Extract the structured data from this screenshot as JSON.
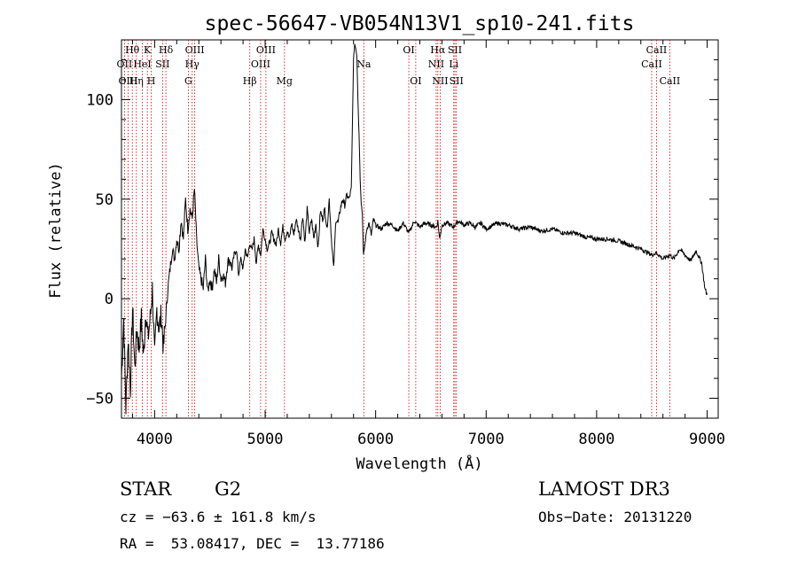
{
  "chart_data": {
    "type": "line",
    "title": "spec-56647-VB054N13V1_sp10-241.fits",
    "xlabel": "Wavelength (Å)",
    "ylabel": "Flux (relative)",
    "xlim": [
      3700,
      9100
    ],
    "ylim": [
      -60,
      130
    ],
    "x_ticks": [
      4000,
      5000,
      6000,
      7000,
      8000,
      9000
    ],
    "y_ticks": [
      -50,
      0,
      50,
      100
    ],
    "x_tick_labels": [
      "4000",
      "5000",
      "6000",
      "7000",
      "8000",
      "9000"
    ],
    "y_tick_labels": [
      "−50",
      "0",
      "50",
      "100"
    ],
    "series": [
      {
        "name": "spectrum",
        "x": [
          3700,
          3720,
          3740,
          3760,
          3780,
          3800,
          3820,
          3840,
          3860,
          3880,
          3900,
          3920,
          3940,
          3960,
          3980,
          4000,
          4020,
          4040,
          4060,
          4080,
          4100,
          4120,
          4140,
          4160,
          4180,
          4200,
          4220,
          4240,
          4260,
          4280,
          4300,
          4320,
          4340,
          4360,
          4380,
          4400,
          4420,
          4440,
          4460,
          4480,
          4500,
          4520,
          4540,
          4560,
          4580,
          4600,
          4620,
          4640,
          4660,
          4680,
          4700,
          4720,
          4740,
          4760,
          4780,
          4800,
          4820,
          4840,
          4860,
          4880,
          4900,
          4920,
          4940,
          4960,
          4980,
          5000,
          5020,
          5040,
          5060,
          5080,
          5100,
          5120,
          5140,
          5160,
          5180,
          5200,
          5220,
          5240,
          5260,
          5280,
          5300,
          5320,
          5340,
          5360,
          5380,
          5400,
          5420,
          5440,
          5460,
          5480,
          5500,
          5520,
          5540,
          5560,
          5580,
          5600,
          5620,
          5640,
          5660,
          5680,
          5700,
          5720,
          5740,
          5760,
          5780,
          5800,
          5810,
          5820,
          5830,
          5840,
          5850,
          5860,
          5870,
          5880,
          5890,
          5900,
          5920,
          5940,
          5960,
          5980,
          6000,
          6050,
          6100,
          6150,
          6200,
          6250,
          6300,
          6350,
          6400,
          6450,
          6500,
          6550,
          6563,
          6580,
          6600,
          6650,
          6700,
          6750,
          6800,
          6850,
          6900,
          6950,
          7000,
          7100,
          7200,
          7300,
          7400,
          7500,
          7600,
          7700,
          7800,
          7900,
          8000,
          8100,
          8200,
          8300,
          8400,
          8500,
          8542,
          8600,
          8662,
          8700,
          8750,
          8800,
          8850,
          8900,
          8950,
          8980,
          9000
        ],
        "values": [
          -40,
          -10,
          -55,
          -20,
          -45,
          -5,
          -35,
          -15,
          -25,
          -10,
          -30,
          -5,
          -20,
          -10,
          5,
          -30,
          -5,
          -15,
          -8,
          -25,
          -10,
          5,
          15,
          25,
          20,
          30,
          25,
          40,
          30,
          50,
          35,
          45,
          40,
          55,
          30,
          15,
          10,
          5,
          20,
          3,
          10,
          5,
          15,
          8,
          20,
          10,
          12,
          8,
          18,
          20,
          15,
          22,
          25,
          12,
          20,
          15,
          25,
          20,
          28,
          24,
          30,
          18,
          27,
          22,
          35,
          30,
          25,
          28,
          33,
          30,
          27,
          35,
          28,
          36,
          30,
          34,
          30,
          38,
          32,
          40,
          35,
          30,
          42,
          28,
          45,
          33,
          40,
          30,
          38,
          25,
          44,
          40,
          45,
          35,
          50,
          30,
          15,
          40,
          38,
          45,
          50,
          47,
          52,
          50,
          55,
          120,
          128,
          126,
          122,
          100,
          82,
          60,
          48,
          42,
          22,
          26,
          35,
          38,
          32,
          40,
          37,
          35,
          38,
          37,
          34,
          38,
          33,
          39,
          36,
          38,
          37,
          36,
          39,
          30,
          37,
          38,
          36,
          39,
          37,
          38,
          36,
          38,
          35,
          38,
          37,
          35,
          36,
          34,
          35,
          33,
          33,
          31,
          30,
          30,
          29,
          27,
          25,
          22,
          23,
          20,
          22,
          20,
          25,
          22,
          19,
          24,
          18,
          5,
          2
        ]
      }
    ],
    "lines": [
      {
        "label": "Hθ",
        "x": 3798,
        "row": 0
      },
      {
        "label": "OII",
        "x": 3727,
        "row": 1
      },
      {
        "label": "OIII",
        "x": 3760,
        "row": 2
      },
      {
        "label": "K",
        "x": 3934,
        "row": 0
      },
      {
        "label": "HeI",
        "x": 3889,
        "row": 1
      },
      {
        "label": "Hη",
        "x": 3835,
        "row": 2
      },
      {
        "label": "SII",
        "x": 4072,
        "row": 1
      },
      {
        "label": "H",
        "x": 3969,
        "row": 2
      },
      {
        "label": "Hδ",
        "x": 4102,
        "row": 0
      },
      {
        "label": "OIII",
        "x": 4363,
        "row": 0
      },
      {
        "label": "Hγ",
        "x": 4340,
        "row": 1
      },
      {
        "label": "G",
        "x": 4305,
        "row": 2
      },
      {
        "label": "Hβ",
        "x": 4861,
        "row": 2
      },
      {
        "label": "OIII",
        "x": 5007,
        "row": 0
      },
      {
        "label": "OIII",
        "x": 4959,
        "row": 1
      },
      {
        "label": "Mg",
        "x": 5175,
        "row": 2
      },
      {
        "label": "Na",
        "x": 5893,
        "row": 1
      },
      {
        "label": "OI",
        "x": 6300,
        "row": 0
      },
      {
        "label": "OI",
        "x": 6363,
        "row": 2
      },
      {
        "label": "Hα",
        "x": 6563,
        "row": 0
      },
      {
        "label": "NII",
        "x": 6548,
        "row": 1
      },
      {
        "label": "NII",
        "x": 6584,
        "row": 2
      },
      {
        "label": "SII",
        "x": 6717,
        "row": 0
      },
      {
        "label": "Li",
        "x": 6707,
        "row": 1
      },
      {
        "label": "SII",
        "x": 6731,
        "row": 2
      },
      {
        "label": "CaII",
        "x": 8542,
        "row": 0
      },
      {
        "label": "CaII",
        "x": 8498,
        "row": 1
      },
      {
        "label": "CaII",
        "x": 8662,
        "row": 2
      }
    ]
  },
  "info": {
    "object_type": "STAR",
    "subclass": "G2",
    "survey": "LAMOST DR3",
    "cz": "cz = −63.6 ± 161.8 km/s",
    "obs_date": "Obs−Date: 20131220",
    "coords": "RA =  53.08417, DEC =  13.77186"
  },
  "colors": {
    "line_marker": "#cc0000",
    "spectrum": "#000000",
    "axis": "#000000"
  }
}
